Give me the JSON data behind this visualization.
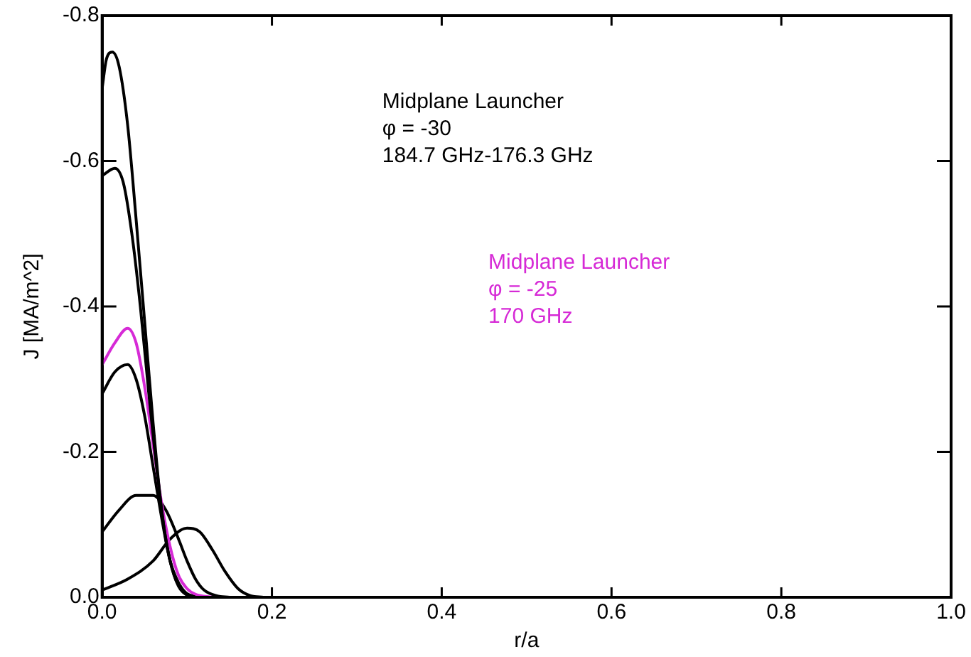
{
  "chart_data": {
    "type": "line",
    "xlabel": "r/a",
    "ylabel": "J [MA/m^2]",
    "xlim": [
      0,
      1
    ],
    "xticks": [
      {
        "value": 0,
        "label": "0.0"
      },
      0.2,
      0.4,
      0.6,
      0.8,
      {
        "value": 1,
        "label": "1.0"
      }
    ],
    "ylim": [
      0,
      -0.8
    ],
    "yticks": [
      {
        "value": 0,
        "label": "0.0"
      },
      -0.2,
      -0.4,
      -0.6,
      -0.8
    ],
    "grid": false,
    "legend": false,
    "marker": "none",
    "line_style": "solid",
    "annotations": [
      "Midplane Launcher",
      "φ = -30",
      "184.7 GHz-176.3 GHz",
      "Midplane Launcher",
      "φ = -25",
      "170 GHz"
    ],
    "series": [
      {
        "color": "#000000",
        "x": [
          0,
          0.005,
          0.012,
          0.02,
          0.03,
          0.04,
          0.05,
          0.06,
          0.07,
          0.08,
          0.09,
          0.1,
          0.11
        ],
        "values": [
          -0.7,
          -0.74,
          -0.75,
          -0.73,
          -0.65,
          -0.52,
          -0.38,
          -0.24,
          -0.12,
          -0.05,
          -0.015,
          -0.003,
          0
        ]
      },
      {
        "color": "#000000",
        "x": [
          0,
          0.015,
          0.025,
          0.035,
          0.045,
          0.055,
          0.065,
          0.075,
          0.085,
          0.095,
          0.11
        ],
        "values": [
          -0.58,
          -0.59,
          -0.57,
          -0.5,
          -0.4,
          -0.28,
          -0.17,
          -0.08,
          -0.03,
          -0.008,
          0
        ]
      },
      {
        "color": "#d62ad6",
        "x": [
          0,
          0.015,
          0.03,
          0.04,
          0.05,
          0.06,
          0.07,
          0.08,
          0.09,
          0.1,
          0.11,
          0.13
        ],
        "values": [
          -0.32,
          -0.35,
          -0.37,
          -0.35,
          -0.29,
          -0.21,
          -0.13,
          -0.07,
          -0.03,
          -0.012,
          -0.004,
          0
        ]
      },
      {
        "color": "#000000",
        "x": [
          0,
          0.015,
          0.03,
          0.04,
          0.05,
          0.06,
          0.07,
          0.08,
          0.09,
          0.1,
          0.12
        ],
        "values": [
          -0.28,
          -0.31,
          -0.32,
          -0.3,
          -0.25,
          -0.18,
          -0.11,
          -0.05,
          -0.02,
          -0.005,
          0
        ]
      },
      {
        "color": "#000000",
        "x": [
          0,
          0.02,
          0.04,
          0.06,
          0.075,
          0.09,
          0.1,
          0.11,
          0.12,
          0.135,
          0.15
        ],
        "values": [
          -0.09,
          -0.12,
          -0.14,
          -0.14,
          -0.12,
          -0.08,
          -0.05,
          -0.025,
          -0.01,
          -0.002,
          0
        ]
      },
      {
        "color": "#000000",
        "x": [
          0,
          0.03,
          0.06,
          0.08,
          0.1,
          0.115,
          0.13,
          0.145,
          0.16,
          0.175,
          0.19
        ],
        "values": [
          -0.01,
          -0.025,
          -0.05,
          -0.08,
          -0.095,
          -0.09,
          -0.065,
          -0.035,
          -0.012,
          -0.002,
          0
        ]
      }
    ]
  }
}
